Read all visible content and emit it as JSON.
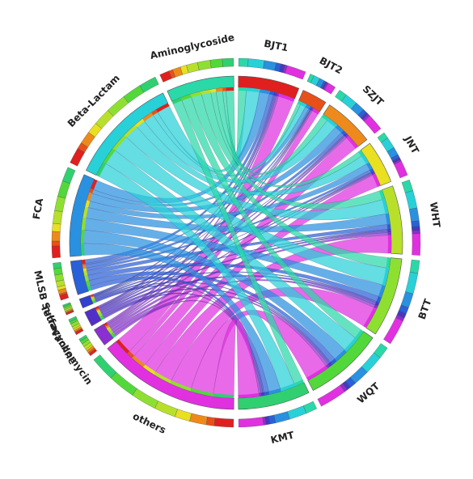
{
  "chart_data": {
    "type": "chord",
    "rows": [
      {
        "name": "BJT1",
        "color": "#e0201e"
      },
      {
        "name": "BJT2",
        "color": "#e8501a"
      },
      {
        "name": "SZJT",
        "color": "#ee8a1c"
      },
      {
        "name": "JNT",
        "color": "#e8e020"
      },
      {
        "name": "WHT",
        "color": "#b8e02a"
      },
      {
        "name": "BTT",
        "color": "#8ee030"
      },
      {
        "name": "WQT",
        "color": "#52d83a"
      },
      {
        "name": "KMT",
        "color": "#30d070"
      }
    ],
    "columns": [
      {
        "name": "Aminoglycoside",
        "color": "#2ad8a8"
      },
      {
        "name": "Beta-Lactam",
        "color": "#28d0d8"
      },
      {
        "name": "FCA",
        "color": "#2a90e0"
      },
      {
        "name": "MLSB",
        "color": "#2a60d8"
      },
      {
        "name": "Sulfa",
        "color": "#3040d0"
      },
      {
        "name": "Tetracycline",
        "color": "#5030c8"
      },
      {
        "name": "Vancomycin",
        "color": "#8a30d0"
      },
      {
        "name": "others",
        "color": "#e030e0"
      }
    ],
    "values": [
      [
        12,
        20,
        15,
        6,
        2,
        3,
        3,
        24
      ],
      [
        5,
        8,
        6,
        2,
        1,
        1,
        2,
        10
      ],
      [
        10,
        16,
        12,
        5,
        1,
        2,
        3,
        21
      ],
      [
        8,
        14,
        10,
        4,
        1,
        2,
        2,
        19
      ],
      [
        14,
        22,
        16,
        7,
        2,
        3,
        4,
        27
      ],
      [
        16,
        26,
        18,
        8,
        2,
        4,
        4,
        32
      ],
      [
        15,
        24,
        20,
        8,
        2,
        3,
        4,
        34
      ],
      [
        14,
        22,
        18,
        7,
        2,
        3,
        3,
        31
      ]
    ]
  }
}
